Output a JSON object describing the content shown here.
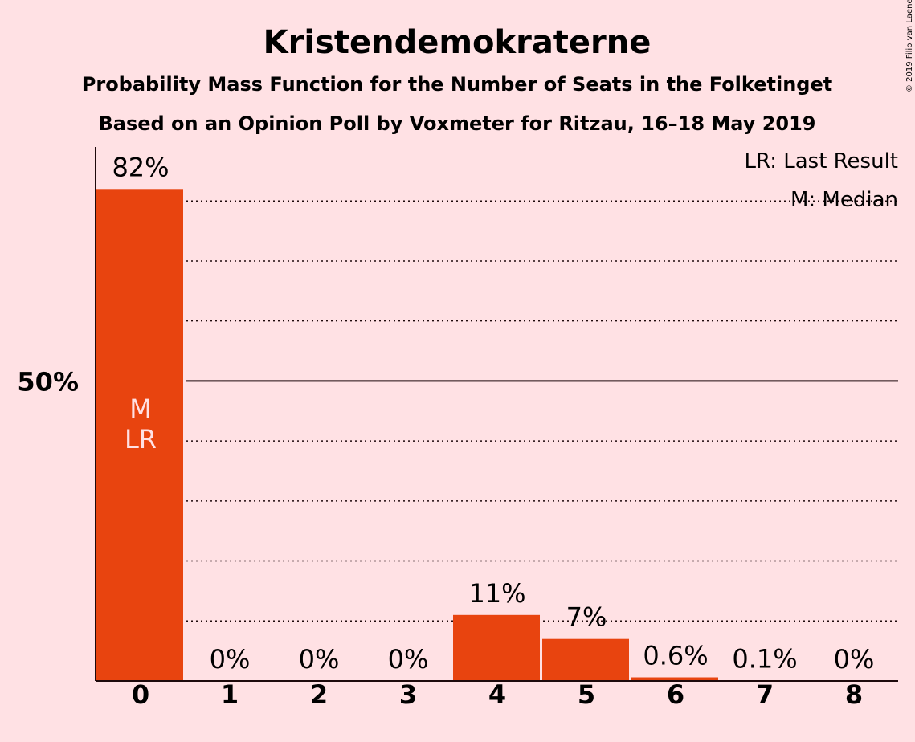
{
  "copyright": "© 2019 Filip van Laenen",
  "chart_data": {
    "type": "bar",
    "title": "Kristendemokraterne",
    "subtitle": "Probability Mass Function for the Number of Seats in the Folketinget",
    "subtitle2": "Based on an Opinion Poll by Voxmeter for Ritzau, 16–18 May 2019",
    "categories": [
      "0",
      "1",
      "2",
      "3",
      "4",
      "5",
      "6",
      "7",
      "8"
    ],
    "values": [
      82,
      0,
      0,
      0,
      11,
      7,
      0.6,
      0.1,
      0
    ],
    "value_labels": [
      "82%",
      "0%",
      "0%",
      "0%",
      "11%",
      "7%",
      "0.6%",
      "0.1%",
      "0%"
    ],
    "bar_markers": [
      {
        "category": "0",
        "lines": [
          "M",
          "LR"
        ]
      }
    ],
    "ylim": [
      0,
      89
    ],
    "y_ticks": [
      {
        "value": 50,
        "label": "50%"
      }
    ],
    "gridlines": [
      10,
      20,
      30,
      40,
      60,
      70,
      80
    ],
    "legend": [
      "LR: Last Result",
      "M: Median"
    ],
    "legend_position": "top-right",
    "bar_color": "#e8440f",
    "text_color": "#1e0a0c",
    "background": "#ffe1e4"
  }
}
